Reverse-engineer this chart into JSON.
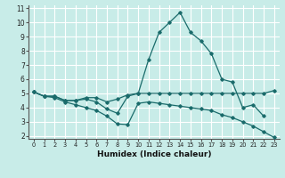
{
  "xlabel": "Humidex (Indice chaleur)",
  "xlim": [
    -0.5,
    23.5
  ],
  "ylim": [
    1.8,
    11.2
  ],
  "xticks": [
    0,
    1,
    2,
    3,
    4,
    5,
    6,
    7,
    8,
    9,
    10,
    11,
    12,
    13,
    14,
    15,
    16,
    17,
    18,
    19,
    20,
    21,
    22,
    23
  ],
  "yticks": [
    2,
    3,
    4,
    5,
    6,
    7,
    8,
    9,
    10,
    11
  ],
  "bg_color": "#c8ece8",
  "grid_color": "#ffffff",
  "line_color": "#1a6b6b",
  "series": [
    [
      5.1,
      4.8,
      4.8,
      4.5,
      4.5,
      4.7,
      4.7,
      4.4,
      4.6,
      4.9,
      5.0,
      5.0,
      5.0,
      5.0,
      5.0,
      5.0,
      5.0,
      5.0,
      5.0,
      5.0,
      5.0,
      5.0,
      5.0,
      5.2
    ],
    [
      5.1,
      4.8,
      4.8,
      4.5,
      4.5,
      4.6,
      4.4,
      3.9,
      3.6,
      4.8,
      5.0,
      7.4,
      9.3,
      10.0,
      10.7,
      9.3,
      8.7,
      7.8,
      6.0,
      5.8,
      4.0,
      4.2,
      3.4,
      null
    ],
    [
      5.1,
      4.8,
      4.7,
      4.4,
      4.2,
      4.0,
      3.8,
      3.4,
      2.85,
      2.8,
      4.3,
      4.4,
      4.3,
      4.2,
      4.1,
      4.0,
      3.9,
      3.8,
      3.5,
      3.3,
      3.0,
      2.7,
      2.3,
      1.9
    ]
  ]
}
